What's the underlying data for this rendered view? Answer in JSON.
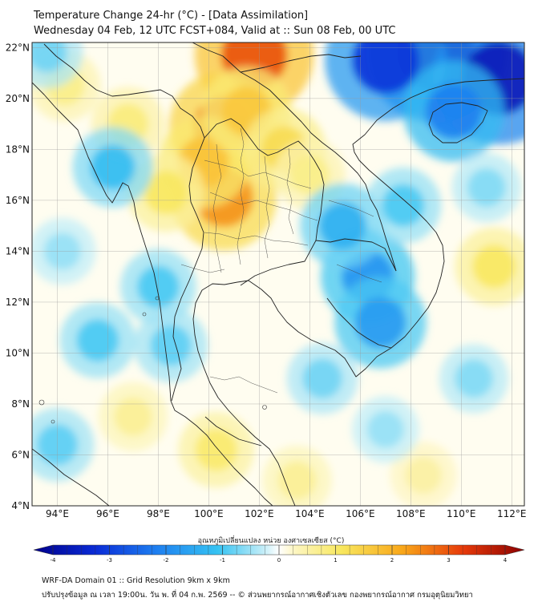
{
  "header": {
    "title_line1": "Temperature Change 24-hr (°C) - [Data Assimilation]",
    "title_line2": "Wednesday 04 Feb, 12 UTC FCST+084, Valid at :: Sun 08 Feb, 00 UTC"
  },
  "map": {
    "lat_labels": [
      "22°N",
      "20°N",
      "18°N",
      "16°N",
      "14°N",
      "12°N",
      "10°N",
      "8°N",
      "6°N",
      "4°N"
    ],
    "lon_labels": [
      "94°E",
      "96°E",
      "98°E",
      "100°E",
      "102°E",
      "104°E",
      "106°E",
      "108°E",
      "110°E",
      "112°E"
    ],
    "lat_range": [
      4,
      22.2
    ],
    "lon_range": [
      93,
      112.5
    ],
    "anomalies": [
      {
        "lon": 101.8,
        "lat": 21.7,
        "value": 2.8
      },
      {
        "lon": 100.6,
        "lat": 18.9,
        "value": 2.4
      },
      {
        "lon": 100.6,
        "lat": 16.1,
        "value": 2.2
      },
      {
        "lon": 99.8,
        "lat": 17.5,
        "value": 1.6
      },
      {
        "lon": 101.5,
        "lat": 19.5,
        "value": 1.5
      },
      {
        "lon": 103.0,
        "lat": 18.0,
        "value": 1.2
      },
      {
        "lon": 98.3,
        "lat": 16.3,
        "value": 1.0
      },
      {
        "lon": 96.8,
        "lat": 19.0,
        "value": 0.8
      },
      {
        "lon": 104.0,
        "lat": 17.0,
        "value": 0.7
      },
      {
        "lon": 94.3,
        "lat": 20.5,
        "value": 0.7
      },
      {
        "lon": 111.3,
        "lat": 13.4,
        "value": 1.0
      },
      {
        "lon": 100.3,
        "lat": 6.2,
        "value": 0.9
      },
      {
        "lon": 97.0,
        "lat": 7.5,
        "value": 0.6
      },
      {
        "lon": 108.5,
        "lat": 5.2,
        "value": 0.5
      },
      {
        "lon": 103.5,
        "lat": 5.0,
        "value": 0.6
      },
      {
        "lon": 109.0,
        "lat": 21.8,
        "value": -3.7
      },
      {
        "lon": 111.5,
        "lat": 20.8,
        "value": -3.4
      },
      {
        "lon": 107.0,
        "lat": 21.5,
        "value": -2.9
      },
      {
        "lon": 109.7,
        "lat": 19.5,
        "value": -2.0
      },
      {
        "lon": 106.3,
        "lat": 13.0,
        "value": -1.7
      },
      {
        "lon": 106.8,
        "lat": 11.2,
        "value": -1.6
      },
      {
        "lon": 105.3,
        "lat": 15.0,
        "value": -1.3
      },
      {
        "lon": 96.2,
        "lat": 17.3,
        "value": -1.1
      },
      {
        "lon": 98.0,
        "lat": 12.6,
        "value": -0.9
      },
      {
        "lon": 95.6,
        "lat": 10.5,
        "value": -0.9
      },
      {
        "lon": 94.0,
        "lat": 6.4,
        "value": -0.8
      },
      {
        "lon": 98.5,
        "lat": 10.3,
        "value": -0.8
      },
      {
        "lon": 104.5,
        "lat": 9.0,
        "value": -0.7
      },
      {
        "lon": 107.7,
        "lat": 15.8,
        "value": -0.9
      },
      {
        "lon": 111.0,
        "lat": 16.5,
        "value": -0.6
      },
      {
        "lon": 110.5,
        "lat": 9.0,
        "value": -0.6
      },
      {
        "lon": 94.2,
        "lat": 14.0,
        "value": -0.5
      },
      {
        "lon": 93.6,
        "lat": 21.8,
        "value": -0.7
      },
      {
        "lon": 107.0,
        "lat": 7.0,
        "value": -0.5
      }
    ]
  },
  "colorbar": {
    "label": "อุณหภูมิเปลี่ยนแปลง หน่วย องศาเซลเซียส (°C)",
    "ticks": [
      "-4",
      "-3",
      "-2",
      "-1",
      "0",
      "1",
      "2",
      "3",
      "4"
    ],
    "range": [
      -4,
      4
    ]
  },
  "footer": {
    "line1": "WRF-DA Domain 01 :: Grid Resolution 9km x 9km",
    "line2": "ปรับปรุงข้อมูล ณ เวลา 19:00น. วัน พ. ที่ 04 ก.พ. 2569 -- © ส่วนพยากรณ์อากาศเชิงตัวเลข กองพยากรณ์อากาศ กรมอุตุนิยมวิทยา"
  },
  "colors": {
    "positive_max": "#a50000",
    "negative_max": "#00008b",
    "neutral": "#ffffff"
  }
}
